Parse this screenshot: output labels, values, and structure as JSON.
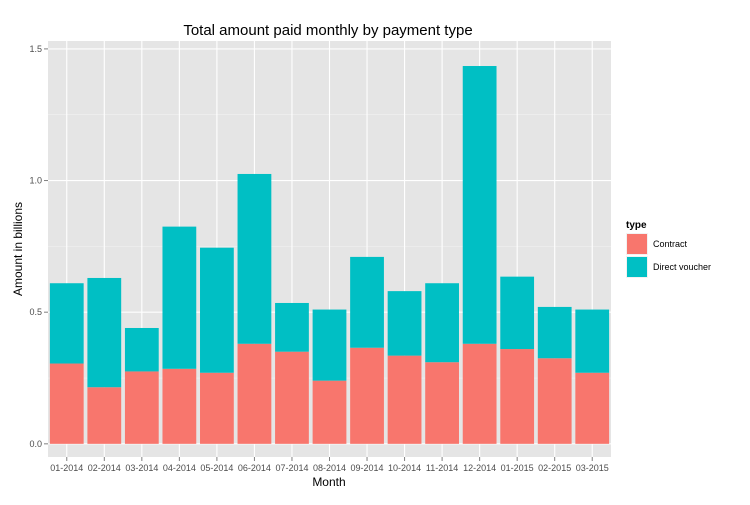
{
  "chart_data": {
    "type": "bar",
    "stacked": true,
    "title": "Total amount paid monthly by payment type",
    "xlabel": "Month",
    "ylabel": "Amount in billions",
    "ylim": [
      -0.05,
      1.53
    ],
    "yticks": [
      0.0,
      0.5,
      1.0,
      1.5
    ],
    "ytick_labels": [
      "0.0",
      "0.5",
      "1.0",
      "1.5"
    ],
    "grid": true,
    "legend": {
      "title": "type",
      "placement": "right"
    },
    "categories": [
      "01-2014",
      "02-2014",
      "03-2014",
      "04-2014",
      "05-2014",
      "06-2014",
      "07-2014",
      "08-2014",
      "09-2014",
      "10-2014",
      "11-2014",
      "12-2014",
      "01-2015",
      "02-2015",
      "03-2015"
    ],
    "series": [
      {
        "name": "Contract",
        "color": "#F8766D",
        "values": [
          0.305,
          0.215,
          0.275,
          0.285,
          0.27,
          0.38,
          0.35,
          0.24,
          0.365,
          0.335,
          0.31,
          0.38,
          0.36,
          0.325,
          0.27
        ]
      },
      {
        "name": "Direct voucher",
        "color": "#00BFC4",
        "values": [
          0.305,
          0.415,
          0.165,
          0.54,
          0.475,
          0.645,
          0.185,
          0.27,
          0.345,
          0.245,
          0.3,
          1.055,
          0.275,
          0.195,
          0.24
        ]
      }
    ]
  }
}
